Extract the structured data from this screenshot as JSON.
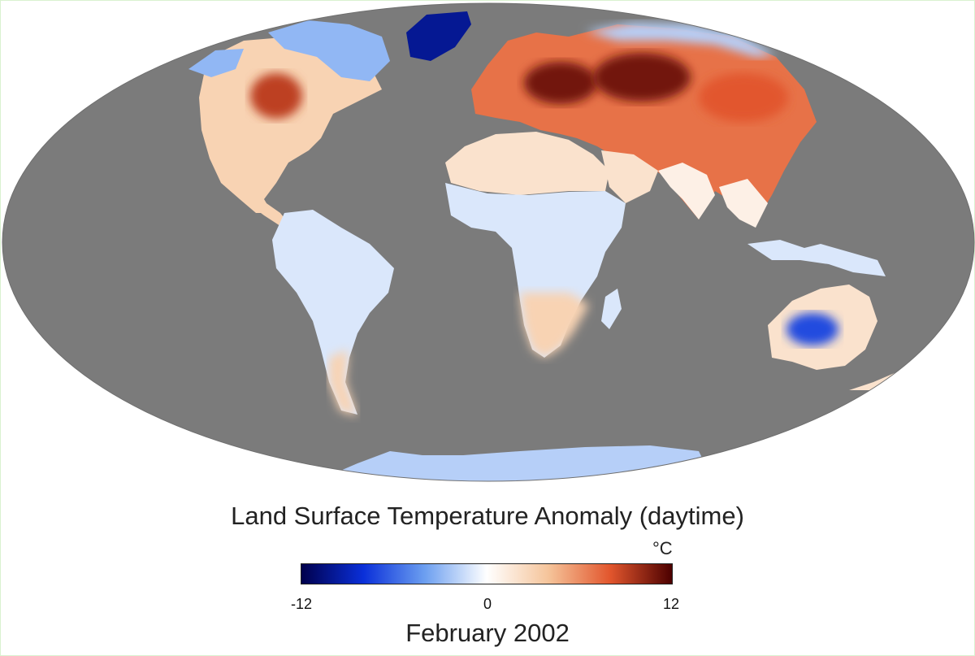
{
  "map": {
    "title": "Land Surface Temperature Anomaly (daytime)",
    "date": "February 2002",
    "projection": "mollweide",
    "ocean_color": "#7b7b7b",
    "background_color": "#ffffff"
  },
  "legend": {
    "unit": "°C",
    "ticks": [
      "-12",
      "0",
      "12"
    ],
    "min": -12,
    "max": 12,
    "colors": [
      "#00004c",
      "#0a2fd9",
      "#6c9ff0",
      "#ffffff",
      "#f5c49a",
      "#e2562d",
      "#4c0000"
    ]
  },
  "regions": [
    {
      "name": "north-america",
      "anomaly": 3
    },
    {
      "name": "great-lakes-hotspot",
      "anomaly": 9
    },
    {
      "name": "canadian-arctic",
      "anomaly": -3
    },
    {
      "name": "greenland",
      "anomaly": -10
    },
    {
      "name": "south-america",
      "anomaly": -1
    },
    {
      "name": "patagonia",
      "anomaly": 3
    },
    {
      "name": "europe-asia",
      "anomaly": 7
    },
    {
      "name": "central-eurasia-hotspot",
      "anomaly": 11
    },
    {
      "name": "siberia-east",
      "anomaly": 8
    },
    {
      "name": "arctic-russia",
      "anomaly": -2
    },
    {
      "name": "north-africa",
      "anomaly": 2
    },
    {
      "name": "central-africa",
      "anomaly": -1
    },
    {
      "name": "southern-africa",
      "anomaly": 3
    },
    {
      "name": "india-southeast-asia",
      "anomaly": 1
    },
    {
      "name": "maritime-southeast-asia",
      "anomaly": -1
    },
    {
      "name": "australia-west",
      "anomaly": -7
    },
    {
      "name": "australia-east",
      "anomaly": 2
    },
    {
      "name": "antarctica",
      "anomaly": -2
    }
  ]
}
